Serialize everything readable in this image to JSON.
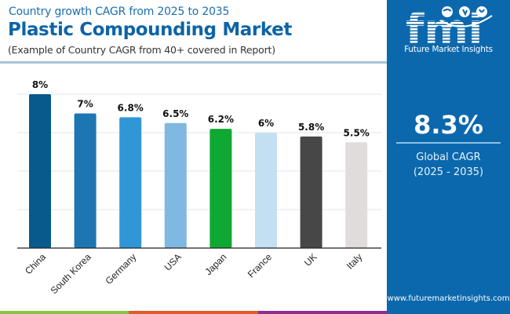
{
  "header": {
    "subtitle_top": "Country growth CAGR from 2025 to 2035",
    "title": "Plastic Compounding Market",
    "subtitle_bottom": "(Example of Country CAGR from 40+ covered in Report)"
  },
  "side_panel": {
    "logo_text": "fmi",
    "logo_caption": "Future Market Insights",
    "global_cagr_value": "8.3%",
    "global_cagr_label": "Global CAGR",
    "global_cagr_period": "(2025 - 2035)",
    "website": "www.futuremarketinsights.com",
    "background_color": "#0c68ad"
  },
  "footer": {
    "colors": [
      "#8bc34a",
      "#e35a2b",
      "#8e2e8f"
    ]
  },
  "chart_data": {
    "type": "bar",
    "title": "Plastic Compounding Market",
    "subtitle": "Country growth CAGR from 2025 to 2035",
    "xlabel": "",
    "ylabel": "",
    "categories": [
      "China",
      "South Korea",
      "Germany",
      "USA",
      "Japan",
      "France",
      "UK",
      "Italy"
    ],
    "values": [
      8,
      7,
      6.8,
      6.5,
      6.2,
      6,
      5.8,
      5.5
    ],
    "labels": [
      "8%",
      "7%",
      "6.8%",
      "6.5%",
      "6.2%",
      "6%",
      "5.8%",
      "5.5%"
    ],
    "colors": [
      "#085a8c",
      "#1c76b2",
      "#3196d6",
      "#7fb8e0",
      "#0fa832",
      "#c3e0f2",
      "#474747",
      "#e0dcdc"
    ],
    "ylim": [
      0,
      8
    ],
    "yticks": [
      0,
      2,
      4,
      6,
      8
    ],
    "grid": true,
    "legend": "none",
    "tick_label_rotation": -45
  }
}
